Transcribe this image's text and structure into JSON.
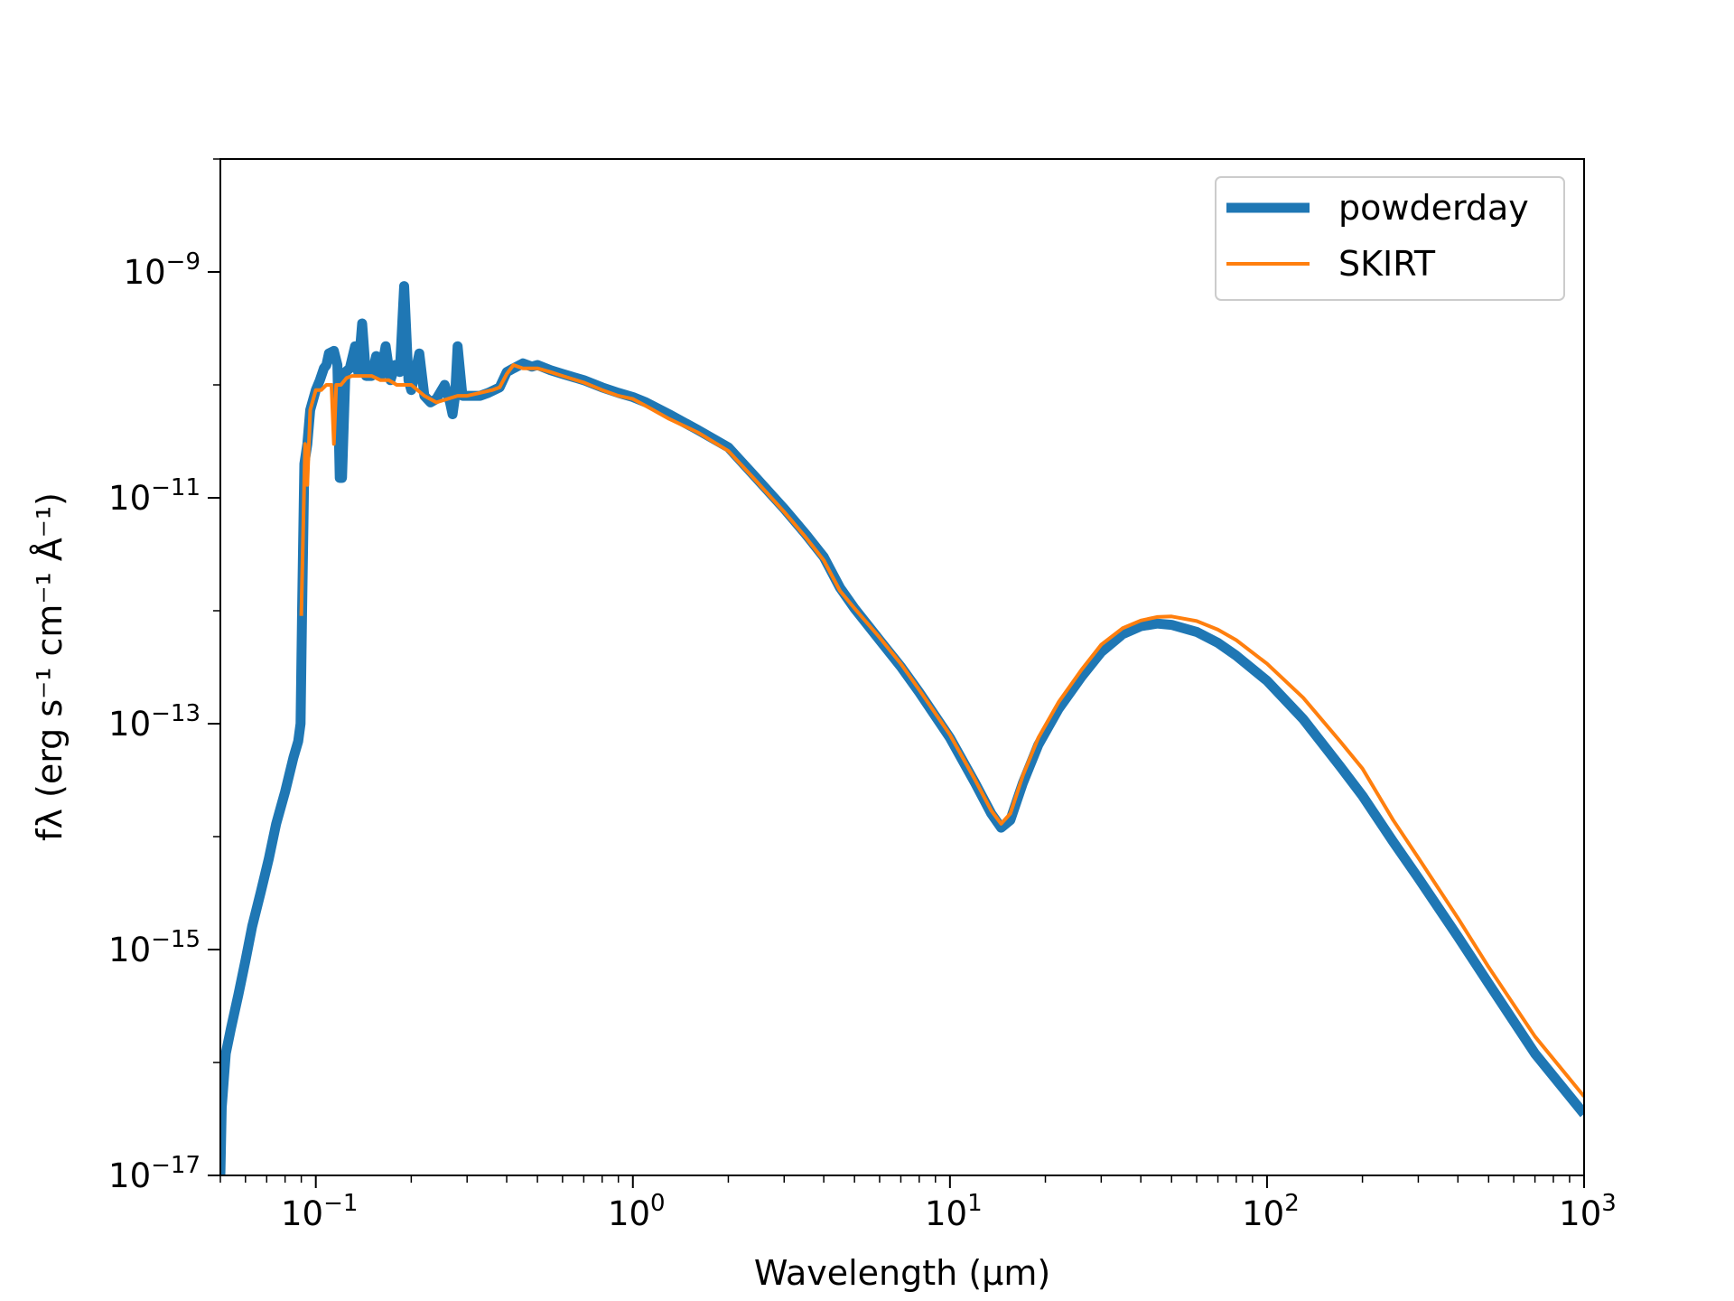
{
  "chart_data": {
    "type": "line",
    "title": "",
    "xlabel": "Wavelength (μm)",
    "ylabel": "fλ (erg s⁻¹ cm⁻¹ Å⁻¹)",
    "x_scale": "log",
    "y_scale": "log",
    "xlim": [
      0.05,
      1000
    ],
    "ylim": [
      1e-17,
      1e-08
    ],
    "x_ticks": [
      {
        "value": 0.1,
        "base": "10",
        "exp": "−1"
      },
      {
        "value": 1,
        "base": "10",
        "exp": "0"
      },
      {
        "value": 10,
        "base": "10",
        "exp": "1"
      },
      {
        "value": 100,
        "base": "10",
        "exp": "2"
      },
      {
        "value": 1000,
        "base": "10",
        "exp": "3"
      }
    ],
    "y_ticks": [
      {
        "value": 1e-17,
        "base": "10",
        "exp": "−17"
      },
      {
        "value": 1e-15,
        "base": "10",
        "exp": "−15"
      },
      {
        "value": 1e-13,
        "base": "10",
        "exp": "−13"
      },
      {
        "value": 1e-11,
        "base": "10",
        "exp": "−11"
      },
      {
        "value": 1e-09,
        "base": "10",
        "exp": "−9"
      }
    ],
    "legend_position": "top-right",
    "grid": false,
    "series": [
      {
        "name": "powderday",
        "color": "#1f77b4",
        "points": [
          [
            0.05,
            1e-17
          ],
          [
            0.0505,
            4e-17
          ],
          [
            0.052,
            1.2e-16
          ],
          [
            0.054,
            2e-16
          ],
          [
            0.057,
            4e-16
          ],
          [
            0.06,
            8e-16
          ],
          [
            0.063,
            1.6e-15
          ],
          [
            0.067,
            3.2e-15
          ],
          [
            0.071,
            6.3e-15
          ],
          [
            0.075,
            1.3e-14
          ],
          [
            0.08,
            2.5e-14
          ],
          [
            0.085,
            5e-14
          ],
          [
            0.088,
            7e-14
          ],
          [
            0.0895,
            1e-13
          ],
          [
            0.0905,
            1e-12
          ],
          [
            0.092,
            2e-11
          ],
          [
            0.094,
            3e-11
          ],
          [
            0.096,
            6e-11
          ],
          [
            0.1,
            9e-11
          ],
          [
            0.103,
            1.1e-10
          ],
          [
            0.106,
            1.4e-10
          ],
          [
            0.108,
            1.5e-10
          ],
          [
            0.11,
            1.9e-10
          ],
          [
            0.114,
            2e-10
          ],
          [
            0.117,
            1.5e-10
          ],
          [
            0.119,
            1.5e-11
          ],
          [
            0.121,
            1.5e-11
          ],
          [
            0.124,
            1.3e-10
          ],
          [
            0.128,
            1.4e-10
          ],
          [
            0.133,
            2.2e-10
          ],
          [
            0.136,
            1.3e-10
          ],
          [
            0.14,
            3.5e-10
          ],
          [
            0.144,
            1.2e-10
          ],
          [
            0.15,
            1.2e-10
          ],
          [
            0.155,
            1.8e-10
          ],
          [
            0.16,
            1.2e-10
          ],
          [
            0.166,
            2.2e-10
          ],
          [
            0.172,
            1.1e-10
          ],
          [
            0.178,
            1.5e-10
          ],
          [
            0.184,
            1.3e-10
          ],
          [
            0.19,
            7.5e-10
          ],
          [
            0.196,
            1.1e-10
          ],
          [
            0.2,
            9e-11
          ],
          [
            0.206,
            1.3e-10
          ],
          [
            0.212,
            1.9e-10
          ],
          [
            0.22,
            8e-11
          ],
          [
            0.23,
            7e-11
          ],
          [
            0.24,
            7.5e-11
          ],
          [
            0.255,
            1e-10
          ],
          [
            0.265,
            7e-11
          ],
          [
            0.27,
            5.5e-11
          ],
          [
            0.275,
            8e-11
          ],
          [
            0.28,
            2.2e-10
          ],
          [
            0.29,
            8e-11
          ],
          [
            0.31,
            8e-11
          ],
          [
            0.33,
            8e-11
          ],
          [
            0.35,
            8.5e-11
          ],
          [
            0.38,
            9.5e-11
          ],
          [
            0.4,
            1.3e-10
          ],
          [
            0.42,
            1.4e-10
          ],
          [
            0.45,
            1.55e-10
          ],
          [
            0.48,
            1.45e-10
          ],
          [
            0.5,
            1.5e-10
          ],
          [
            0.55,
            1.35e-10
          ],
          [
            0.6,
            1.25e-10
          ],
          [
            0.7,
            1.1e-10
          ],
          [
            0.8,
            9.5e-11
          ],
          [
            0.9,
            8.5e-11
          ],
          [
            1.0,
            7.8e-11
          ],
          [
            1.1,
            7e-11
          ],
          [
            1.3,
            5.5e-11
          ],
          [
            1.6,
            4e-11
          ],
          [
            2.0,
            2.8e-11
          ],
          [
            2.4,
            1.6e-11
          ],
          [
            3.0,
            8e-12
          ],
          [
            3.5,
            4.8e-12
          ],
          [
            4.0,
            3e-12
          ],
          [
            4.5,
            1.6e-12
          ],
          [
            5.0,
            1.05e-12
          ],
          [
            6.0,
            5.5e-13
          ],
          [
            7.0,
            3.2e-13
          ],
          [
            8.0,
            1.9e-13
          ],
          [
            10.0,
            7.5e-14
          ],
          [
            12.0,
            3e-14
          ],
          [
            13.5,
            1.6e-14
          ],
          [
            14.5,
            1.2e-14
          ],
          [
            15.5,
            1.4e-14
          ],
          [
            17.0,
            3e-14
          ],
          [
            19.0,
            6.5e-14
          ],
          [
            22.0,
            1.35e-13
          ],
          [
            26.0,
            2.6e-13
          ],
          [
            30.0,
            4.3e-13
          ],
          [
            35.0,
            6.2e-13
          ],
          [
            40.0,
            7.3e-13
          ],
          [
            45.0,
            7.7e-13
          ],
          [
            50.0,
            7.5e-13
          ],
          [
            60.0,
            6.5e-13
          ],
          [
            70.0,
            5.2e-13
          ],
          [
            80.0,
            4e-13
          ],
          [
            100.0,
            2.4e-13
          ],
          [
            130.0,
            1.1e-13
          ],
          [
            170.0,
            4.2e-14
          ],
          [
            200.0,
            2.3e-14
          ],
          [
            250.0,
            9e-15
          ],
          [
            300.0,
            4.3e-15
          ],
          [
            400.0,
            1.3e-15
          ],
          [
            500.0,
            5e-16
          ],
          [
            700.0,
            1.2e-16
          ],
          [
            1000.0,
            3.5e-17
          ]
        ]
      },
      {
        "name": "SKIRT",
        "color": "#ff7f0e",
        "points": [
          [
            0.09,
            9e-13
          ],
          [
            0.0925,
            3e-11
          ],
          [
            0.094,
            1.3e-11
          ],
          [
            0.096,
            6e-11
          ],
          [
            0.1,
            9e-11
          ],
          [
            0.104,
            9e-11
          ],
          [
            0.108,
            1e-10
          ],
          [
            0.112,
            1e-10
          ],
          [
            0.114,
            3e-11
          ],
          [
            0.116,
            1e-10
          ],
          [
            0.12,
            1e-10
          ],
          [
            0.125,
            1.15e-10
          ],
          [
            0.13,
            1.2e-10
          ],
          [
            0.14,
            1.2e-10
          ],
          [
            0.15,
            1.2e-10
          ],
          [
            0.16,
            1.1e-10
          ],
          [
            0.17,
            1.1e-10
          ],
          [
            0.18,
            1e-10
          ],
          [
            0.2,
            1e-10
          ],
          [
            0.22,
            8e-11
          ],
          [
            0.24,
            7e-11
          ],
          [
            0.26,
            7.5e-11
          ],
          [
            0.28,
            8e-11
          ],
          [
            0.3,
            8e-11
          ],
          [
            0.33,
            8.5e-11
          ],
          [
            0.36,
            9e-11
          ],
          [
            0.38,
            9.5e-11
          ],
          [
            0.4,
            1.25e-10
          ],
          [
            0.42,
            1.5e-10
          ],
          [
            0.45,
            1.4e-10
          ],
          [
            0.5,
            1.4e-10
          ],
          [
            0.55,
            1.3e-10
          ],
          [
            0.6,
            1.2e-10
          ],
          [
            0.7,
            1.05e-10
          ],
          [
            0.8,
            9e-11
          ],
          [
            0.9,
            8e-11
          ],
          [
            1.0,
            7.5e-11
          ],
          [
            1.1,
            6.5e-11
          ],
          [
            1.3,
            5e-11
          ],
          [
            1.6,
            3.8e-11
          ],
          [
            2.0,
            2.6e-11
          ],
          [
            2.4,
            1.5e-11
          ],
          [
            3.0,
            7.5e-12
          ],
          [
            3.5,
            4.5e-12
          ],
          [
            4.0,
            2.8e-12
          ],
          [
            4.5,
            1.5e-12
          ],
          [
            5.0,
            1.05e-12
          ],
          [
            6.0,
            5.8e-13
          ],
          [
            7.0,
            3.4e-13
          ],
          [
            8.0,
            2e-13
          ],
          [
            10.0,
            8e-14
          ],
          [
            12.0,
            3.2e-14
          ],
          [
            13.5,
            1.7e-14
          ],
          [
            14.5,
            1.3e-14
          ],
          [
            15.5,
            1.6e-14
          ],
          [
            17.0,
            3.5e-14
          ],
          [
            19.0,
            7.5e-14
          ],
          [
            22.0,
            1.55e-13
          ],
          [
            26.0,
            3e-13
          ],
          [
            30.0,
            5e-13
          ],
          [
            35.0,
            7e-13
          ],
          [
            40.0,
            8.2e-13
          ],
          [
            45.0,
            8.8e-13
          ],
          [
            50.0,
            8.9e-13
          ],
          [
            60.0,
            8.1e-13
          ],
          [
            70.0,
            6.8e-13
          ],
          [
            80.0,
            5.5e-13
          ],
          [
            100.0,
            3.4e-13
          ],
          [
            130.0,
            1.7e-13
          ],
          [
            170.0,
            7e-14
          ],
          [
            200.0,
            4e-14
          ],
          [
            250.0,
            1.4e-14
          ],
          [
            300.0,
            6.5e-15
          ],
          [
            400.0,
            1.9e-15
          ],
          [
            500.0,
            7e-16
          ],
          [
            700.0,
            1.7e-16
          ],
          [
            1000.0,
            5e-17
          ]
        ]
      }
    ]
  }
}
